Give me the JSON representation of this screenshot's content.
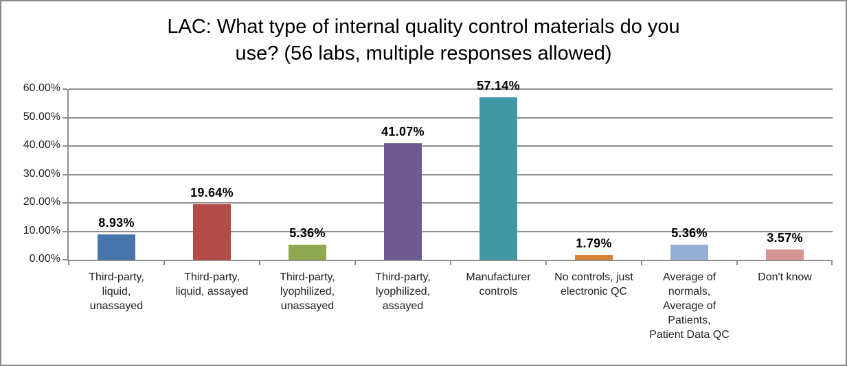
{
  "window": {
    "background": "#ffffff",
    "border_color": "#8a8a8a"
  },
  "chart_data": {
    "type": "bar",
    "title": "LAC: What type of internal quality control materials do you\nuse? (56 labs, multiple responses allowed)",
    "categories": [
      "Third-party,\nliquid,\nunassayed",
      "Third-party,\nliquid, assayed",
      "Third-party,\nlyophilized,\nunassayed",
      "Third-party,\nlyophilized,\nassayed",
      "Manufacturer\ncontrols",
      "No controls, just\nelectronic QC",
      "Average of\nnormals,\nAverage of\nPatients,\nPatient Data QC",
      "Don't know"
    ],
    "values": [
      8.93,
      19.64,
      5.36,
      41.07,
      57.14,
      1.79,
      5.36,
      3.57
    ],
    "data_labels": [
      "8.93%",
      "19.64%",
      "5.36%",
      "41.07%",
      "57.14%",
      "1.79%",
      "5.36%",
      "3.57%"
    ],
    "bar_colors": [
      "#4674ab",
      "#b34b47",
      "#90a84f",
      "#6e5a8e",
      "#4297a7",
      "#d98232",
      "#96afd7",
      "#d79694"
    ],
    "xlabel": "",
    "ylabel": "",
    "ylim": [
      0,
      60
    ],
    "ytick_step": 10,
    "ytick_labels": [
      "0.00%",
      "10.00%",
      "20.00%",
      "30.00%",
      "40.00%",
      "50.00%",
      "60.00%"
    ],
    "grid": true,
    "gridline_color": "#8e8e8e",
    "axis_color": "#8e8e8e",
    "legend": "none"
  }
}
